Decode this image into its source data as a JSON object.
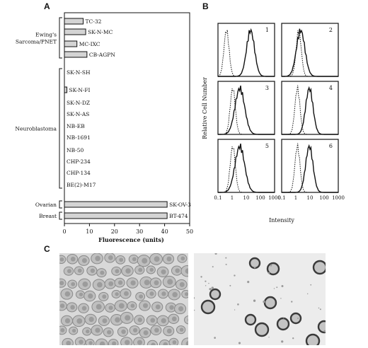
{
  "panels": {
    "a": "A",
    "b": "B",
    "c": "C"
  },
  "chart_data": [
    {
      "type": "bar",
      "orientation": "horizontal",
      "xlabel": "Fluorescence (units)",
      "xlim": [
        0,
        50
      ],
      "xticks": [
        0,
        10,
        20,
        30,
        40,
        50
      ],
      "groups": [
        {
          "name": "Ewing's Sarcoma/PNET",
          "lines": [
            "Ewing's",
            "Sarcoma/PNET"
          ]
        },
        {
          "name": "Neuroblastoma",
          "lines": [
            "Neuroblastoma"
          ]
        },
        {
          "name": "Ovarian",
          "lines": [
            "Ovarian"
          ]
        },
        {
          "name": "Breast",
          "lines": [
            "Breast"
          ]
        }
      ],
      "categories": [
        "TC-32",
        "SK-N-MC",
        "MC-IXC",
        "CB-AGPN",
        "SK-N-SH",
        "SK-N-FI",
        "SK-N-DZ",
        "SK-N-AS",
        "NB-EB",
        "NB-1691",
        "NB-50",
        "CHP-234",
        "CHP-134",
        "BE(2)-M17",
        "SK-OV-3",
        "BT-474"
      ],
      "category_group": [
        0,
        0,
        0,
        0,
        1,
        1,
        1,
        1,
        1,
        1,
        1,
        1,
        1,
        1,
        2,
        3
      ],
      "values": [
        7.5,
        8.5,
        5,
        9,
        0,
        1,
        0,
        0,
        0,
        0,
        0,
        0,
        0,
        0,
        41,
        41
      ]
    },
    {
      "type": "line",
      "subtype": "flow-cytometry-histograms",
      "ylabel": "Relative Cell Number",
      "xlabel": "Intensity",
      "x_scale": "log",
      "xlim": [
        0.1,
        1000
      ],
      "xticks": [
        "0.1",
        "1",
        "10",
        "100",
        "1000"
      ],
      "panels": [
        {
          "label": "1",
          "control_peak": 0.4,
          "sample_peak": 20,
          "sample_width": 0.28
        },
        {
          "label": "2",
          "control_peak": 1.6,
          "sample_peak": 2.2,
          "sample_width": 0.3
        },
        {
          "label": "3",
          "control_peak": 1.1,
          "sample_peak": 3.5,
          "sample_width": 0.34
        },
        {
          "label": "4",
          "control_peak": 1.3,
          "sample_peak": 9,
          "sample_width": 0.26
        },
        {
          "label": "5",
          "control_peak": 1.1,
          "sample_peak": 3.5,
          "sample_width": 0.34
        },
        {
          "label": "6",
          "control_peak": 1.3,
          "sample_peak": 9,
          "sample_width": 0.26
        }
      ]
    }
  ],
  "micrographs": [
    {
      "name": "micrograph-left"
    },
    {
      "name": "micrograph-right"
    }
  ],
  "colors": {
    "bar_fill": "#d4d4d4",
    "stroke": "#111111"
  }
}
